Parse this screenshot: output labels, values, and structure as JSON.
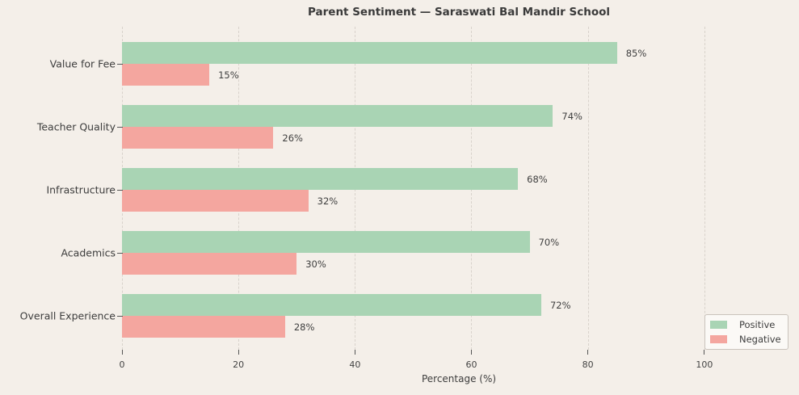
{
  "chart_data": {
    "type": "bar",
    "orientation": "horizontal",
    "title": "Parent Sentiment — Saraswati Bal Mandir School",
    "xlabel": "Percentage (%)",
    "categories": [
      "Value for Fee",
      "Teacher Quality",
      "Infrastructure",
      "Academics",
      "Overall Experience"
    ],
    "series": [
      {
        "name": "Positive",
        "color": "#a9d4b4",
        "values": [
          85,
          74,
          68,
          70,
          72
        ]
      },
      {
        "name": "Negative",
        "color": "#f4a69f",
        "values": [
          15,
          26,
          32,
          30,
          28
        ]
      }
    ],
    "value_suffix": "%",
    "xticks": [
      0,
      20,
      40,
      60,
      80,
      100
    ],
    "xlim": [
      0,
      115.7
    ],
    "grid": "dashed-vertical",
    "legend_position": "lower-right"
  },
  "colors": {
    "background": "#f4efe9",
    "grid": "#d8d2cb",
    "text": "#3d3d3d",
    "legend_border": "#c9c3bc"
  }
}
